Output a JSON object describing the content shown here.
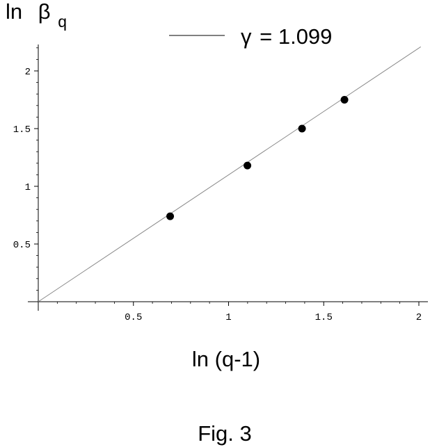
{
  "figure_caption": "Fig. 3",
  "chart_data": {
    "type": "scatter",
    "ylabel": {
      "main": "ln",
      "symbol": "β",
      "subscript": "q"
    },
    "xlabel": "ln (q-1)",
    "legend": {
      "symbol": "γ",
      "text": "= 1.099",
      "placement": "top"
    },
    "xlim": [
      0,
      2.05
    ],
    "ylim": [
      0,
      2.2
    ],
    "x_ticks": [
      {
        "value": 0.5,
        "label": "0.5"
      },
      {
        "value": 1,
        "label": "1"
      },
      {
        "value": 1.5,
        "label": "1.5"
      },
      {
        "value": 2,
        "label": "2"
      }
    ],
    "y_ticks": [
      {
        "value": 0.5,
        "label": "0.5"
      },
      {
        "value": 1,
        "label": "1"
      },
      {
        "value": 1.5,
        "label": "1.5"
      },
      {
        "value": 2,
        "label": "2"
      }
    ],
    "minor_tick_step": 0.1,
    "grid": false,
    "series": [
      {
        "type": "scatter",
        "color": "#000000",
        "points": [
          {
            "x": 0.693,
            "y": 0.74
          },
          {
            "x": 1.099,
            "y": 1.18
          },
          {
            "x": 1.386,
            "y": 1.5
          },
          {
            "x": 1.609,
            "y": 1.75
          }
        ]
      },
      {
        "type": "line",
        "color": "#888888",
        "slope": 1.099,
        "intercept": 0,
        "x_range": [
          0,
          2.01
        ]
      }
    ]
  }
}
